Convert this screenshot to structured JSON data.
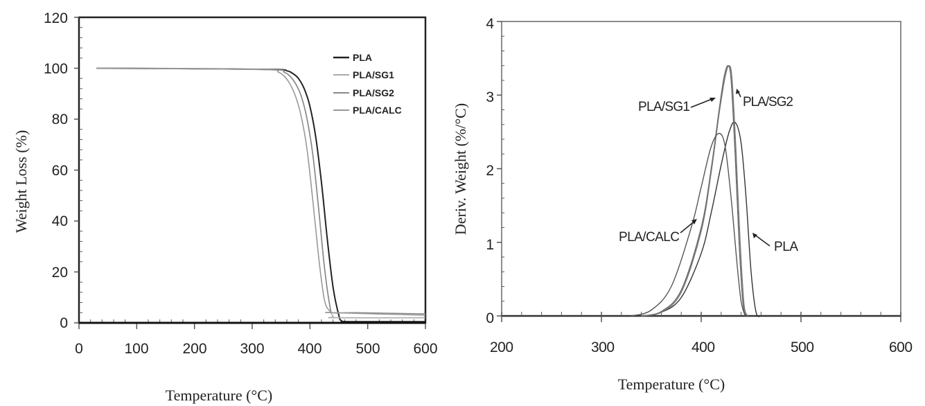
{
  "chart_data": [
    {
      "type": "line",
      "title": "",
      "xlabel": "Temperature (°C)",
      "ylabel": "Weight Loss (%)",
      "xlim": [
        0,
        600
      ],
      "ylim": [
        0,
        120
      ],
      "xticks": [
        0,
        100,
        200,
        300,
        400,
        500,
        600
      ],
      "yticks": [
        0,
        20,
        40,
        60,
        80,
        100,
        120
      ],
      "grid": false,
      "legend_position": "upper right",
      "legend": [
        "PLA",
        "PLA/SG1",
        "PLA/SG2",
        "PLA/CALC"
      ],
      "series": [
        {
          "name": "PLA",
          "color": "#222222",
          "x": [
            30,
            200,
            340,
            360,
            370,
            380,
            390,
            400,
            410,
            420,
            430,
            440,
            450,
            455,
            470,
            600
          ],
          "y": [
            100,
            99.8,
            99.5,
            99,
            98,
            96,
            92,
            85,
            73,
            55,
            33,
            14,
            3,
            0.8,
            0.5,
            0.5
          ]
        },
        {
          "name": "PLA/SG1",
          "color": "#aaaaaa",
          "x": [
            30,
            200,
            340,
            355,
            365,
            375,
            385,
            395,
            405,
            415,
            425,
            435,
            440,
            445,
            600
          ],
          "y": [
            100,
            99.8,
            99.4,
            98.5,
            97,
            94,
            89,
            80,
            66,
            45,
            22,
            6,
            2.5,
            2,
            2
          ]
        },
        {
          "name": "PLA/SG2",
          "color": "#888888",
          "x": [
            30,
            200,
            340,
            355,
            365,
            375,
            385,
            395,
            405,
            415,
            425,
            435,
            440,
            480,
            600
          ],
          "y": [
            100,
            99.8,
            99.4,
            98.5,
            97,
            94,
            89,
            80,
            66,
            45,
            22,
            6,
            4,
            4,
            3.5
          ]
        },
        {
          "name": "PLA/CALC",
          "color": "#999999",
          "x": [
            30,
            200,
            330,
            345,
            355,
            365,
            375,
            385,
            395,
            405,
            415,
            425,
            435,
            440,
            600
          ],
          "y": [
            100,
            99.8,
            99.4,
            98.5,
            97,
            94,
            89,
            81,
            68,
            48,
            26,
            9,
            4.5,
            4,
            3
          ]
        }
      ]
    },
    {
      "type": "line",
      "title": "",
      "xlabel": "Temperature (°C)",
      "ylabel": "Deriv. Weight (%/°C)",
      "xlim": [
        200,
        600
      ],
      "ylim": [
        0,
        4
      ],
      "xticks": [
        200,
        300,
        400,
        500,
        600
      ],
      "yticks": [
        0,
        1,
        2,
        3,
        4
      ],
      "grid": false,
      "annotations": [
        {
          "text": "PLA/SG1",
          "target": "PLA/SG1"
        },
        {
          "text": "PLA/SG2",
          "target": "PLA/SG2"
        },
        {
          "text": "PLA/CALC",
          "target": "PLA/CALC"
        },
        {
          "text": "PLA",
          "target": "PLA"
        }
      ],
      "series": [
        {
          "name": "PLA",
          "color": "#333333",
          "x": [
            340,
            360,
            380,
            400,
            410,
            420,
            428,
            434,
            440,
            445,
            450,
            455,
            460
          ],
          "y": [
            0,
            0.05,
            0.25,
            0.85,
            1.4,
            2.05,
            2.5,
            2.63,
            2.35,
            1.6,
            0.6,
            0.05,
            0
          ]
        },
        {
          "name": "PLA/SG1",
          "color": "#666666",
          "x": [
            340,
            360,
            380,
            400,
            410,
            418,
            423,
            427,
            430,
            434,
            438,
            442,
            446
          ],
          "y": [
            0,
            0.06,
            0.35,
            1.2,
            2.0,
            2.8,
            3.25,
            3.4,
            3.2,
            2.2,
            1.0,
            0.15,
            0
          ]
        },
        {
          "name": "PLA/SG2",
          "color": "#777777",
          "x": [
            340,
            360,
            380,
            400,
            410,
            418,
            424,
            428,
            431,
            435,
            439,
            443,
            447
          ],
          "y": [
            0,
            0.05,
            0.32,
            1.15,
            1.95,
            2.75,
            3.25,
            3.4,
            3.2,
            2.2,
            1.0,
            0.15,
            0
          ]
        },
        {
          "name": "PLA/CALC",
          "color": "#555555",
          "x": [
            330,
            350,
            370,
            390,
            400,
            410,
            418,
            424,
            430,
            436,
            440,
            444
          ],
          "y": [
            0,
            0.08,
            0.4,
            1.2,
            1.75,
            2.3,
            2.48,
            2.3,
            1.6,
            0.7,
            0.2,
            0
          ]
        }
      ]
    }
  ],
  "left_chart": {
    "ylabel": "Weight Loss (%)",
    "xlabel": "Temperature (°C)",
    "xtick_labels": [
      "0",
      "100",
      "200",
      "300",
      "400",
      "500",
      "600"
    ],
    "ytick_labels": [
      "0",
      "20",
      "40",
      "60",
      "80",
      "100",
      "120"
    ],
    "legend": [
      "PLA",
      "PLA/SG1",
      "PLA/SG2",
      "PLA/CALC"
    ]
  },
  "right_chart": {
    "ylabel": "Deriv. Weight (%/°C)",
    "xlabel": "Temperature (°C)",
    "xtick_labels": [
      "200",
      "300",
      "400",
      "500",
      "600"
    ],
    "ytick_labels": [
      "0",
      "1",
      "2",
      "3",
      "4"
    ],
    "annotations": [
      "PLA/SG1",
      "PLA/SG2",
      "PLA/CALC",
      "PLA"
    ]
  }
}
